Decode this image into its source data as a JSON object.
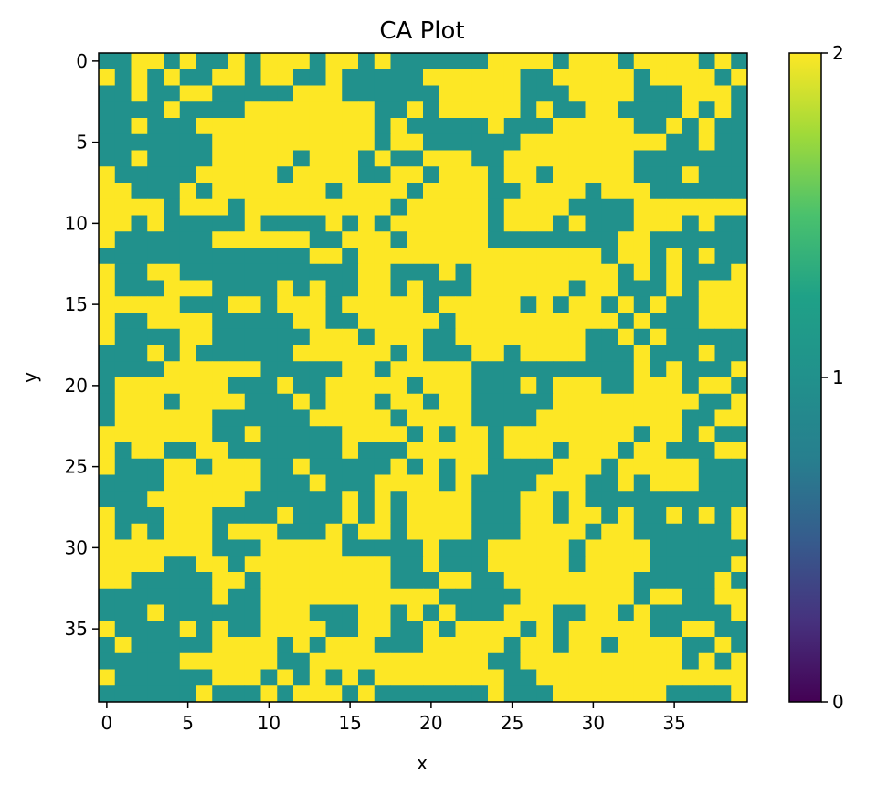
{
  "chart_data": {
    "type": "heatmap",
    "title": "CA Plot",
    "xlabel": "x",
    "ylabel": "y",
    "grid": false,
    "colormap": "viridis",
    "value_range": [
      0,
      2
    ],
    "rows": 40,
    "cols": 40,
    "x_ticks": [
      "0",
      "5",
      "10",
      "15",
      "20",
      "25",
      "30",
      "35"
    ],
    "y_ticks": [
      "0",
      "5",
      "10",
      "15",
      "20",
      "25",
      "30",
      "35"
    ],
    "colorbar_ticks": [
      "0",
      "1",
      "2"
    ],
    "colors": {
      "low": "#440154",
      "mid": "#21918c",
      "high": "#fde725"
    },
    "grid_rows": [
      "1122121121222122121111112222122212222121",
      "2121211221221121111122222211222221222212",
      "1121122111112221111112222211122221112221",
      "1111211112222222211212222212112211112121",
      "1121112222222222212111112111222221121211",
      "1111111222222222212211111122222222211211",
      "1121111222221222121122211222222221111111",
      "2111112222212222112212221221222221112111",
      "2211121222222212222122221122221222111111",
      "2222122212222222221222221222211112222222",
      "2212111112111121212222221222121112221211",
      "2111111222222112221222221111111122111111",
      "1111111111111221222222222222222122121211",
      "2112211111111111221112122222222212121112",
      "2111222111121211221211122222212211121222",
      "2222211122122212222212222212122121211222",
      "2112222111112211222221222222222212111222",
      "2111122111111222122211222222221121211111",
      "1112121111112222221211122122221112111211",
      "1111222222111112212222211111111112121112",
      "1222222211121122222122211121222112221221",
      "1222122221112122212212211111222222222112",
      "1222222111111222221222211112222222221122",
      "2222222112111112222121221222222221221211",
      "2122112211111112111222221222122212211122",
      "2111221222112111112121221111222122222111",
      "1111222222111211122221211112221121222111",
      "1112222221111112121222211122121111111111",
      "2111222111121112121222211122122121121212",
      "2121222122211121221222211122221221111112",
      "2222222111222221111121112222212222111111",
      "2222112212222222221121112222212222111112",
      "2211111221222222221112211222222221111121",
      "1111111211222222222221111122222221221122",
      "1112111111222111221212111222112212111112",
      "2111121211222211221121222212122222112211",
      "1211111222212122211122222122122122221121",
      "1111122222211222222222221122222222221212",
      "2111111222121212122222222112222222222222",
      "1111112111212221211111112111222222211112"
    ]
  }
}
